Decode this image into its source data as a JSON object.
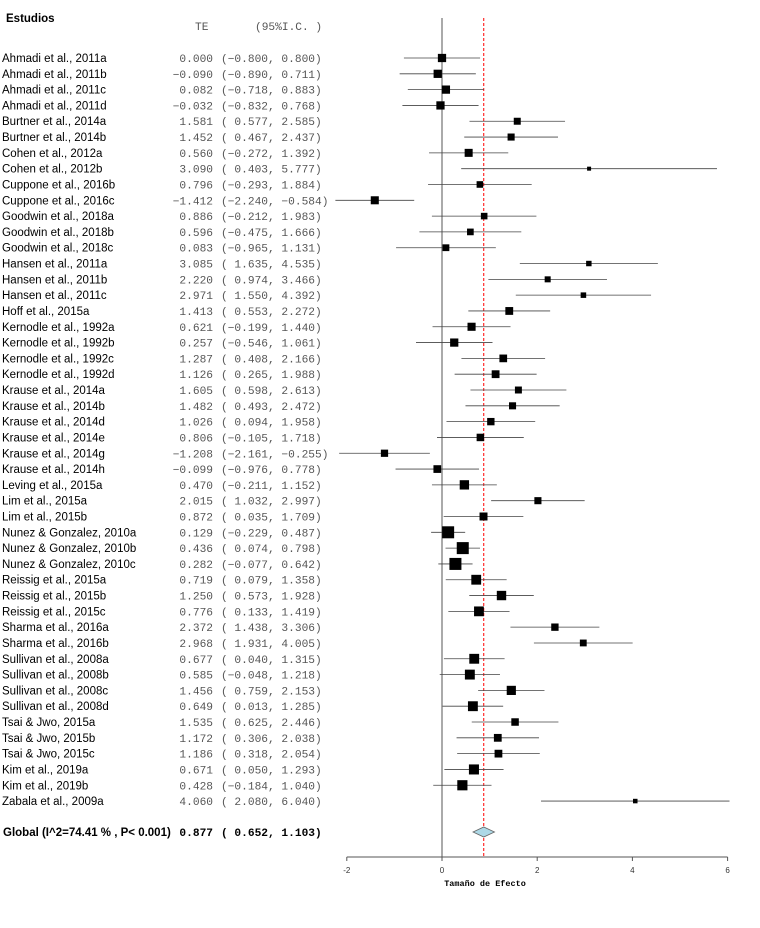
{
  "chart_data": {
    "type": "forest",
    "header": {
      "studies": "Estudios",
      "te": "TE",
      "ci": "(95%I.C. )"
    },
    "xlabel": "Tamaño de Efecto",
    "xlim": [
      -2,
      6
    ],
    "xticks": [
      "-2",
      "0",
      "2",
      "4",
      "6"
    ],
    "reference_line": 0,
    "pooled_line_color": "#ff0000",
    "diamond_color": "#add8e6",
    "studies": [
      {
        "name": "Ahmadi et al., 2011a",
        "te": "0.000",
        "lo": "-0.800",
        "hi": "0.800"
      },
      {
        "name": "Ahmadi et al., 2011b",
        "te": "-0.090",
        "lo": "-0.890",
        "hi": "0.711"
      },
      {
        "name": "Ahmadi et al., 2011c",
        "te": "0.082",
        "lo": "-0.718",
        "hi": "0.883"
      },
      {
        "name": "Ahmadi et al., 2011d",
        "te": "-0.032",
        "lo": "-0.832",
        "hi": "0.768"
      },
      {
        "name": "Burtner et al., 2014a",
        "te": "1.581",
        "lo": "0.577",
        "hi": "2.585"
      },
      {
        "name": "Burtner et al., 2014b",
        "te": "1.452",
        "lo": "0.467",
        "hi": "2.437"
      },
      {
        "name": "Cohen et al., 2012a",
        "te": "0.560",
        "lo": "-0.272",
        "hi": "1.392"
      },
      {
        "name": "Cohen et al., 2012b",
        "te": "3.090",
        "lo": "0.403",
        "hi": "5.777"
      },
      {
        "name": "Cuppone et al., 2016b",
        "te": "0.796",
        "lo": "-0.293",
        "hi": "1.884"
      },
      {
        "name": "Cuppone et al., 2016c",
        "te": "-1.412",
        "lo": "-2.240",
        "hi": "-0.584"
      },
      {
        "name": "Goodwin et al., 2018a",
        "te": "0.886",
        "lo": "-0.212",
        "hi": "1.983"
      },
      {
        "name": "Goodwin et al., 2018b",
        "te": "0.596",
        "lo": "-0.475",
        "hi": "1.666"
      },
      {
        "name": "Goodwin et al., 2018c",
        "te": "0.083",
        "lo": "-0.965",
        "hi": "1.131"
      },
      {
        "name": "Hansen et al., 2011a",
        "te": "3.085",
        "lo": "1.635",
        "hi": "4.535"
      },
      {
        "name": "Hansen et al., 2011b",
        "te": "2.220",
        "lo": "0.974",
        "hi": "3.466"
      },
      {
        "name": "Hansen et al., 2011c",
        "te": "2.971",
        "lo": "1.550",
        "hi": "4.392"
      },
      {
        "name": "Hoff et al., 2015a",
        "te": "1.413",
        "lo": "0.553",
        "hi": "2.272"
      },
      {
        "name": "Kernodle et al., 1992a",
        "te": "0.621",
        "lo": "-0.199",
        "hi": "1.440"
      },
      {
        "name": "Kernodle et al., 1992b",
        "te": "0.257",
        "lo": "-0.546",
        "hi": "1.061"
      },
      {
        "name": "Kernodle et al., 1992c",
        "te": "1.287",
        "lo": "0.408",
        "hi": "2.166"
      },
      {
        "name": "Kernodle et al., 1992d",
        "te": "1.126",
        "lo": "0.265",
        "hi": "1.988"
      },
      {
        "name": "Krause et al., 2014a",
        "te": "1.605",
        "lo": "0.598",
        "hi": "2.613"
      },
      {
        "name": "Krause et al., 2014b",
        "te": "1.482",
        "lo": "0.493",
        "hi": "2.472"
      },
      {
        "name": "Krause et al., 2014d",
        "te": "1.026",
        "lo": "0.094",
        "hi": "1.958"
      },
      {
        "name": "Krause et al., 2014e",
        "te": "0.806",
        "lo": "-0.105",
        "hi": "1.718"
      },
      {
        "name": "Krause et al., 2014g",
        "te": "-1.208",
        "lo": "-2.161",
        "hi": "-0.255"
      },
      {
        "name": "Krause et al., 2014h",
        "te": "-0.099",
        "lo": "-0.976",
        "hi": "0.778"
      },
      {
        "name": "Leving et al., 2015a",
        "te": "0.470",
        "lo": "-0.211",
        "hi": "1.152"
      },
      {
        "name": "Lim et al., 2015a",
        "te": "2.015",
        "lo": "1.032",
        "hi": "2.997"
      },
      {
        "name": "Lim et al., 2015b",
        "te": "0.872",
        "lo": "0.035",
        "hi": "1.709"
      },
      {
        "name": "Nunez & Gonzalez, 2010a",
        "te": "0.129",
        "lo": "-0.229",
        "hi": "0.487"
      },
      {
        "name": "Nunez & Gonzalez, 2010b",
        "te": "0.436",
        "lo": "0.074",
        "hi": "0.798"
      },
      {
        "name": "Nunez & Gonzalez, 2010c",
        "te": "0.282",
        "lo": "-0.077",
        "hi": "0.642"
      },
      {
        "name": "Reissig et al., 2015a",
        "te": "0.719",
        "lo": "0.079",
        "hi": "1.358"
      },
      {
        "name": "Reissig et al., 2015b",
        "te": "1.250",
        "lo": "0.573",
        "hi": "1.928"
      },
      {
        "name": "Reissig et al., 2015c",
        "te": "0.776",
        "lo": "0.133",
        "hi": "1.419"
      },
      {
        "name": "Sharma et al., 2016a",
        "te": "2.372",
        "lo": "1.438",
        "hi": "3.306"
      },
      {
        "name": "Sharma et al., 2016b",
        "te": "2.968",
        "lo": "1.931",
        "hi": "4.005"
      },
      {
        "name": "Sullivan et al., 2008a",
        "te": "0.677",
        "lo": "0.040",
        "hi": "1.315"
      },
      {
        "name": "Sullivan et al., 2008b",
        "te": "0.585",
        "lo": "-0.048",
        "hi": "1.218"
      },
      {
        "name": "Sullivan et al., 2008c",
        "te": "1.456",
        "lo": "0.759",
        "hi": "2.153"
      },
      {
        "name": "Sullivan et al., 2008d",
        "te": "0.649",
        "lo": "0.013",
        "hi": "1.285"
      },
      {
        "name": "Tsai & Jwo, 2015a",
        "te": "1.535",
        "lo": "0.625",
        "hi": "2.446"
      },
      {
        "name": "Tsai & Jwo, 2015b",
        "te": "1.172",
        "lo": "0.306",
        "hi": "2.038"
      },
      {
        "name": "Tsai & Jwo, 2015c",
        "te": "1.186",
        "lo": "0.318",
        "hi": "2.054"
      },
      {
        "name": "Kim et al., 2019a",
        "te": "0.671",
        "lo": "0.050",
        "hi": "1.293"
      },
      {
        "name": "Kim et al., 2019b",
        "te": "0.428",
        "lo": "-0.184",
        "hi": "1.040"
      },
      {
        "name": "Zabala et al., 2009a",
        "te": "4.060",
        "lo": "2.080",
        "hi": "6.040"
      }
    ],
    "global": {
      "name": "Global (I^2=74.41 % , P< 0.001)",
      "te": "0.877",
      "lo": "0.652",
      "hi": "1.103"
    }
  }
}
